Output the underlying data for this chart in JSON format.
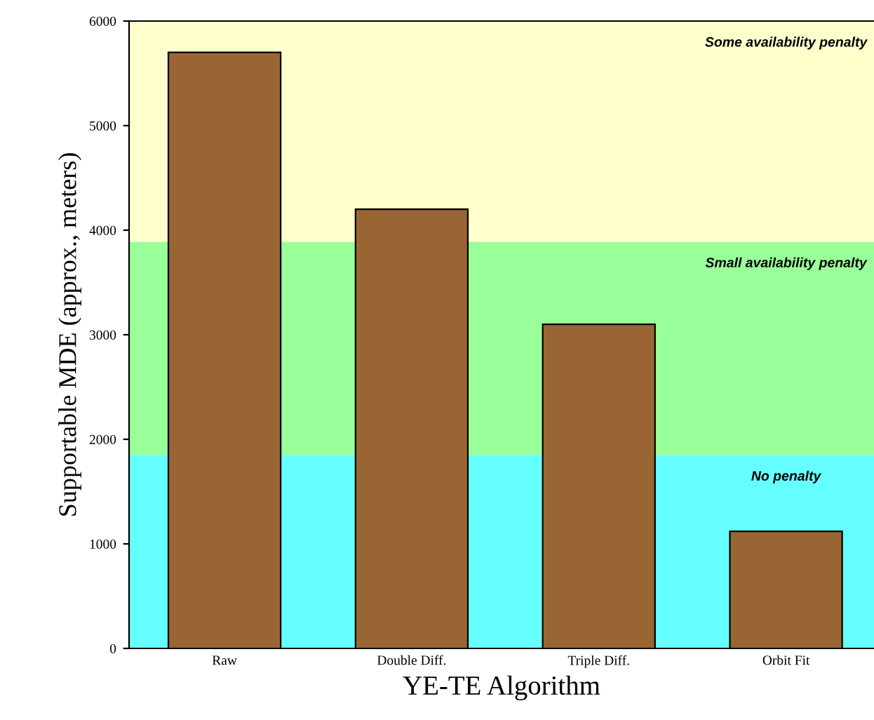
{
  "chart_data": {
    "type": "bar",
    "xlabel": "YE-TE Algorithm",
    "ylabel": "Supportable MDE (approx., meters)",
    "categories": [
      "Raw",
      "Double Diff.",
      "Triple Diff.",
      "Orbit Fit"
    ],
    "values": [
      5700,
      4200,
      3100,
      1120
    ],
    "color": "#996633",
    "ylim": [
      0,
      6000
    ],
    "yticks": [
      0,
      1000,
      2000,
      3000,
      4000,
      5000,
      6000
    ],
    "grid": false,
    "bands": [
      {
        "axis": "y",
        "from": 0,
        "to": 1850,
        "label": "No penalty",
        "color": "#66ffff"
      },
      {
        "axis": "y",
        "from": 1850,
        "to": 3890,
        "label": "Small availability penalty",
        "color": "#99ff99"
      },
      {
        "axis": "y",
        "from": 3890,
        "to": 6000,
        "label": "Some availability penalty",
        "color": "#ffffcc"
      }
    ]
  }
}
